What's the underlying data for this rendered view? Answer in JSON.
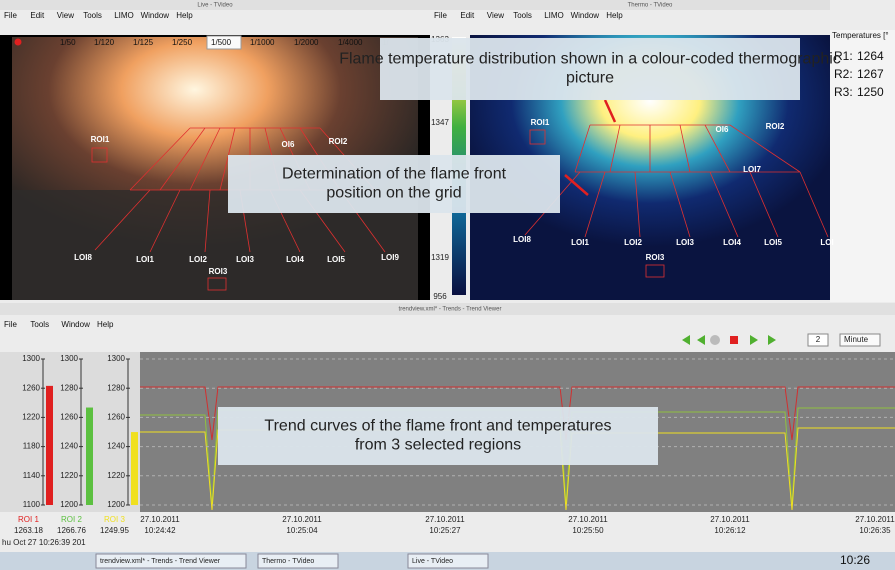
{
  "live_window": {
    "title": "Live - TVideo",
    "menu": [
      "File",
      "Edit",
      "View",
      "Tools",
      "LIMO",
      "Window",
      "Help"
    ],
    "shutter_speeds": [
      "1/50",
      "1/120",
      "1/125",
      "1/250",
      "1/500",
      "1/1000",
      "1/2000",
      "1/4000",
      "1/"
    ],
    "labels": [
      "ROI1",
      "OI6",
      "ROI2",
      "LOI8",
      "LOI1",
      "LOI2",
      "LOI3",
      "LOI4",
      "LOI5",
      "LOI9",
      "ROI3"
    ]
  },
  "color_scale": {
    "labels": [
      1363,
      1347,
      1319,
      956
    ]
  },
  "thermo_window": {
    "title": "Thermo - TVideo",
    "menu": [
      "File",
      "Edit",
      "View",
      "Tools",
      "LIMO",
      "Window",
      "Help"
    ],
    "labels": [
      "ROI1",
      "OI6",
      "ROI2",
      "LOI7",
      "LOI8",
      "LOI1",
      "LOI2",
      "LOI3",
      "LOI4",
      "LOI5",
      "LOI",
      "ROI3"
    ]
  },
  "temperatures": {
    "header": "Temperatures [°",
    "readings": [
      {
        "label": "R1:",
        "value": 1264
      },
      {
        "label": "R2:",
        "value": 1267
      },
      {
        "label": "R3:",
        "value": 1250
      }
    ]
  },
  "callouts": [
    "Flame temperature distribution shown in a colour-coded thermographic picture",
    "Determination of the flame front position on the grid",
    "Trend curves of the flame front and temperatures from 3 selected regions"
  ],
  "trend_window": {
    "title": "trendview.xml* - Trends - Trend Viewer",
    "menu": [
      "File",
      "Tools",
      "Window",
      "Help"
    ],
    "interval": 2,
    "unit": "Minute",
    "gauges": [
      {
        "name": "ROI 1",
        "color": "#e02020",
        "value": 1263.18,
        "ticks": [
          1300,
          1260,
          1220,
          1180,
          1140,
          1100
        ]
      },
      {
        "name": "ROI 2",
        "color": "#5cc040",
        "value": 1266.76,
        "ticks": [
          1300,
          1280,
          1260,
          1240,
          1220,
          1200
        ]
      },
      {
        "name": "ROI 3",
        "color": "#f0e020",
        "value": 1249.95,
        "ticks": [
          1300,
          1280,
          1260,
          1240,
          1220,
          1200
        ]
      }
    ],
    "times": [
      {
        "date": "27.10.2011",
        "time": "10:24:42"
      },
      {
        "date": "27.10.2011",
        "time": "10:25:04"
      },
      {
        "date": "27.10.2011",
        "time": "10:25:27"
      },
      {
        "date": "27.10.2011",
        "time": "10:25:50"
      },
      {
        "date": "27.10.2011",
        "time": "10:26:12"
      },
      {
        "date": "27.10.2011",
        "time": "10:26:35"
      }
    ],
    "status": "hu Oct 27 10:26:39 201"
  },
  "taskbar": {
    "items": [
      "trendview.xml* - Trends - Trend Viewer",
      "Thermo - TVideo",
      "Live - TVideo"
    ],
    "clock": "10:26"
  }
}
